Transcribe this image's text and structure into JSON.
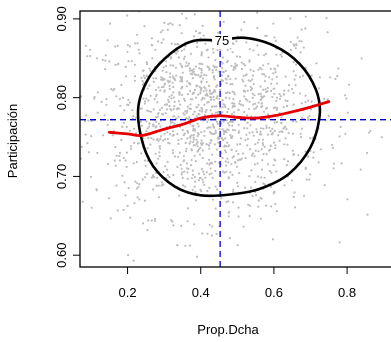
{
  "chart_data": {
    "type": "scatter",
    "xlabel": "Prop.Dcha",
    "ylabel": "Participación",
    "xlim": [
      0.07,
      0.92
    ],
    "ylim": [
      0.585,
      0.91
    ],
    "x_ticks": [
      {
        "value": 0.2,
        "label": "0.2"
      },
      {
        "value": 0.4,
        "label": "0.4"
      },
      {
        "value": 0.6,
        "label": "0.6"
      },
      {
        "value": 0.8,
        "label": "0.8"
      }
    ],
    "y_ticks": [
      {
        "value": 0.6,
        "label": "0.60"
      },
      {
        "value": 0.7,
        "label": "0.70"
      },
      {
        "value": 0.8,
        "label": "0.80"
      },
      {
        "value": 0.9,
        "label": "0.90"
      }
    ],
    "points_color": "#bdbdbd",
    "point_count": 1400,
    "point_center": [
      0.42,
      0.775
    ],
    "vline_x": 0.453,
    "hline_y": 0.772,
    "ref_line_color": "#0000cc",
    "contour_label": "75",
    "contour_color": "#000000",
    "contour": [
      [
        0.45,
        0.873
      ],
      [
        0.52,
        0.876
      ],
      [
        0.6,
        0.866
      ],
      [
        0.67,
        0.843
      ],
      [
        0.715,
        0.81
      ],
      [
        0.725,
        0.778
      ],
      [
        0.7,
        0.737
      ],
      [
        0.64,
        0.703
      ],
      [
        0.56,
        0.684
      ],
      [
        0.48,
        0.677
      ],
      [
        0.4,
        0.676
      ],
      [
        0.33,
        0.687
      ],
      [
        0.27,
        0.713
      ],
      [
        0.238,
        0.748
      ],
      [
        0.23,
        0.79
      ],
      [
        0.262,
        0.828
      ],
      [
        0.32,
        0.857
      ],
      [
        0.38,
        0.872
      ]
    ],
    "smooth_color": "#e60000",
    "smooth": [
      [
        0.15,
        0.756
      ],
      [
        0.2,
        0.754
      ],
      [
        0.24,
        0.752
      ],
      [
        0.3,
        0.76
      ],
      [
        0.35,
        0.766
      ],
      [
        0.4,
        0.774
      ],
      [
        0.45,
        0.777
      ],
      [
        0.5,
        0.775
      ],
      [
        0.55,
        0.774
      ],
      [
        0.6,
        0.777
      ],
      [
        0.65,
        0.782
      ],
      [
        0.7,
        0.788
      ],
      [
        0.75,
        0.795
      ]
    ]
  }
}
